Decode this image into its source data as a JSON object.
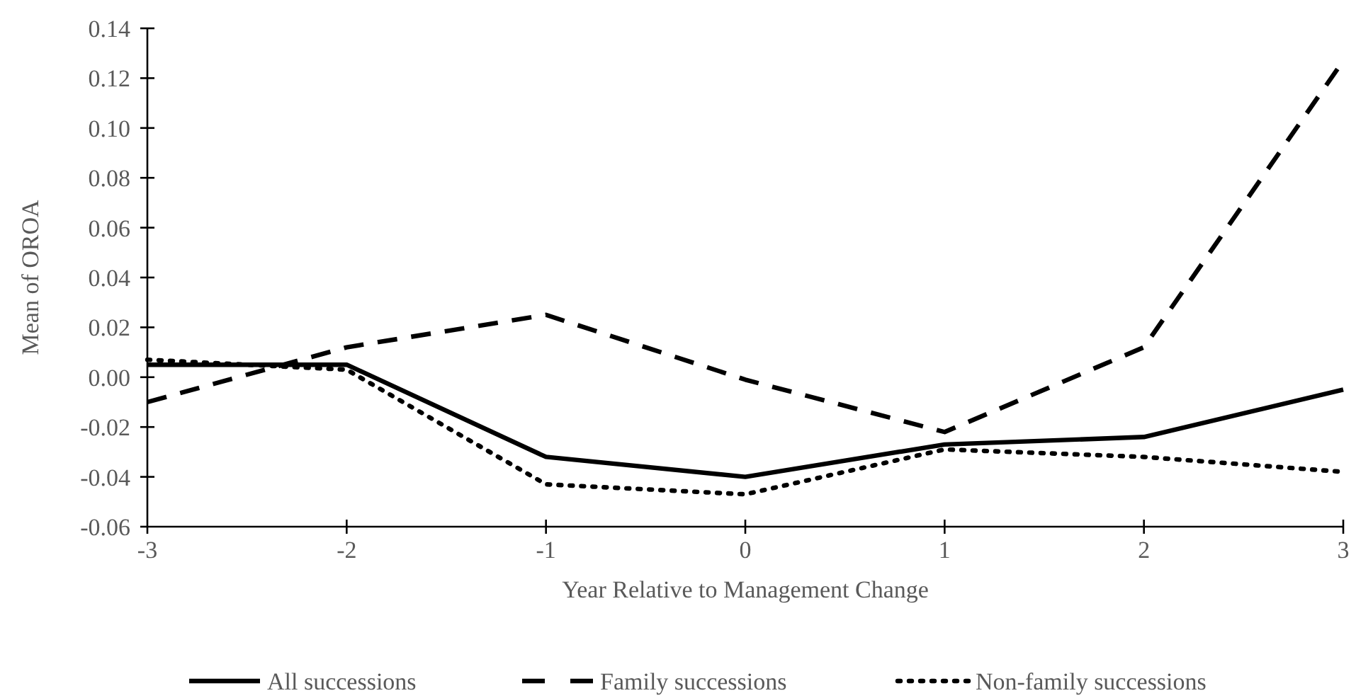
{
  "chart_data": {
    "type": "line",
    "xlabel": "Year Relative to Management Change",
    "ylabel": "Mean of OROA",
    "x": [
      -3,
      -2,
      -1,
      0,
      1,
      2,
      3
    ],
    "xlim": [
      -3,
      3
    ],
    "xticks": [
      -3,
      -2,
      -1,
      0,
      1,
      2,
      3
    ],
    "ylim": [
      -0.06,
      0.14
    ],
    "yticks": [
      {
        "value": -0.06,
        "label": "-0.06"
      },
      {
        "value": -0.04,
        "label": "-0.04"
      },
      {
        "value": -0.02,
        "label": "-0.02"
      },
      {
        "value": 0,
        "label": "0.00"
      },
      {
        "value": 0.02,
        "label": "0.02"
      },
      {
        "value": 0.04,
        "label": "0.04"
      },
      {
        "value": 0.06,
        "label": "0.06"
      },
      {
        "value": 0.08,
        "label": "0.08"
      },
      {
        "value": 0.1,
        "label": "0.10"
      },
      {
        "value": 0.12,
        "label": "0.12"
      },
      {
        "value": 0.14,
        "label": "0.14"
      }
    ],
    "grid": false,
    "legend": "bottom",
    "marker": "none",
    "series": [
      {
        "name": "All successions",
        "color": "#000000",
        "line_style": "solid",
        "values": [
          0.005,
          0.005,
          -0.032,
          -0.04,
          -0.027,
          -0.024,
          -0.005
        ]
      },
      {
        "name": "Family successions",
        "color": "#000000",
        "line_style": "dashed",
        "values": [
          -0.01,
          0.012,
          0.025,
          -0.001,
          -0.022,
          0.012,
          0.127
        ]
      },
      {
        "name": "Non-family successions",
        "color": "#000000",
        "line_style": "dotted",
        "values": [
          0.007,
          0.003,
          -0.043,
          -0.047,
          -0.029,
          -0.032,
          -0.038
        ]
      }
    ]
  }
}
